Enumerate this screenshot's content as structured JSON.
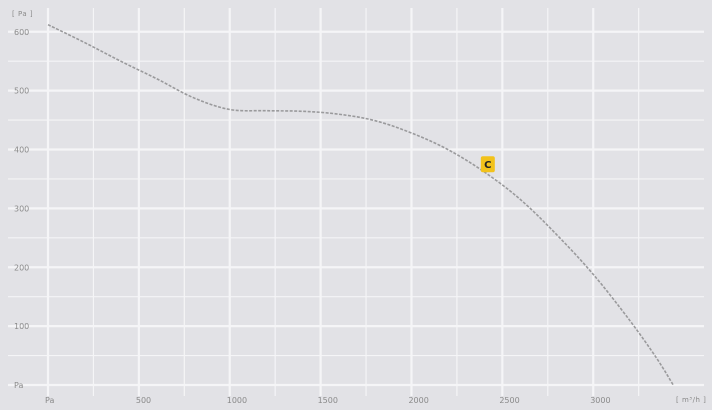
{
  "chart_data": {
    "type": "line",
    "title": "",
    "xlabel": "[ m³/h ]",
    "ylabel": "[ Pa ]",
    "xlim": [
      0,
      3450
    ],
    "ylim": [
      0,
      620
    ],
    "x_ticks": [
      0,
      500,
      1000,
      1500,
      2000,
      2500,
      3000
    ],
    "x_tick_labels": [
      "Pa",
      "500",
      "1000",
      "1500",
      "2000",
      "2500",
      "3000"
    ],
    "y_ticks": [
      0,
      100,
      200,
      300,
      400,
      500,
      600
    ],
    "y_tick_labels": [
      "Pa",
      "100",
      "200",
      "300",
      "400",
      "500",
      "600"
    ],
    "grid": true,
    "series": [
      {
        "x": [
          0,
          200,
          400,
          600,
          800,
          1000,
          1200,
          1400,
          1600,
          1800,
          2000,
          2200,
          2400,
          2600,
          2800,
          3000,
          3200,
          3350,
          3440
        ],
        "y": [
          612,
          582,
          550,
          520,
          488,
          468,
          466,
          465,
          460,
          449,
          428,
          400,
          362,
          315,
          255,
          188,
          110,
          45,
          0
        ]
      }
    ],
    "annotations": [
      {
        "label": "C",
        "x": 2420,
        "y": 375
      }
    ],
    "colors": {
      "background": "#e2e2e6",
      "grid": "#f5f5f7",
      "curve": "#9a9a9c",
      "marker": "#f2c21b"
    }
  }
}
